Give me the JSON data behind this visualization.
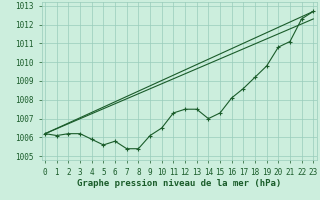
{
  "title": "Graphe pression niveau de la mer (hPa)",
  "bg_color": "#cceedd",
  "grid_color": "#99ccbb",
  "line_color": "#1a5c2a",
  "x_values": [
    0,
    1,
    2,
    3,
    4,
    5,
    6,
    7,
    8,
    9,
    10,
    11,
    12,
    13,
    14,
    15,
    16,
    17,
    18,
    19,
    20,
    21,
    22,
    23
  ],
  "main_series": [
    1006.2,
    1006.1,
    1006.2,
    1006.2,
    1005.9,
    1005.6,
    1005.8,
    1005.4,
    1005.4,
    1006.1,
    1006.5,
    1007.3,
    1007.5,
    1007.5,
    1007.0,
    1007.3,
    1008.1,
    1008.6,
    1009.2,
    1009.8,
    1010.8,
    1011.1,
    1012.3,
    1012.7
  ],
  "straight_line1": [
    [
      0,
      1006.2
    ],
    [
      23,
      1012.7
    ]
  ],
  "straight_line2": [
    [
      0,
      1006.2
    ],
    [
      23,
      1012.3
    ]
  ],
  "ylim": [
    1004.8,
    1013.2
  ],
  "xlim": [
    -0.3,
    23.3
  ],
  "yticks": [
    1005,
    1006,
    1007,
    1008,
    1009,
    1010,
    1011,
    1012,
    1013
  ],
  "xticks": [
    0,
    1,
    2,
    3,
    4,
    5,
    6,
    7,
    8,
    9,
    10,
    11,
    12,
    13,
    14,
    15,
    16,
    17,
    18,
    19,
    20,
    21,
    22,
    23
  ],
  "xlabel_fontsize": 6.5,
  "tick_fontsize": 5.5
}
